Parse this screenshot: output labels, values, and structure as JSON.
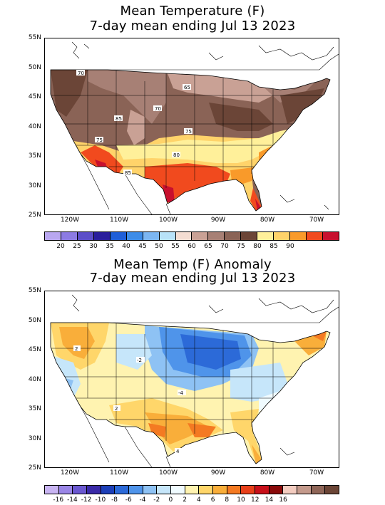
{
  "map1": {
    "title_line1": "Mean Temperature (F)",
    "title_line2": "7-day mean ending Jul 13 2023",
    "lat_labels": [
      "55N",
      "50N",
      "45N",
      "40N",
      "35N",
      "30N",
      "25N"
    ],
    "lon_labels": [
      "120W",
      "110W",
      "100W",
      "90W",
      "80W",
      "70W"
    ],
    "contour_labels": [
      "70",
      "65",
      "70",
      "85",
      "75",
      "75",
      "80",
      "85"
    ],
    "legend": {
      "colors": [
        "#b9a7f0",
        "#8c7be3",
        "#5c4ec8",
        "#2a1e9c",
        "#1f5fd8",
        "#3d8ce8",
        "#7cb6f2",
        "#b8e2f8",
        "#f4ddd2",
        "#c9a195",
        "#a78075",
        "#8a6356",
        "#6b4537",
        "#fff09a",
        "#ffd36a",
        "#f99a2a",
        "#f14a1e",
        "#c8102e"
      ],
      "labels": [
        "20",
        "25",
        "30",
        "35",
        "40",
        "45",
        "50",
        "55",
        "60",
        "65",
        "70",
        "75",
        "80",
        "85",
        "90"
      ]
    }
  },
  "map2": {
    "title_line1": "Mean Temp (F) Anomaly",
    "title_line2": "7-day mean ending Jul 13 2023",
    "lat_labels": [
      "55N",
      "50N",
      "45N",
      "40N",
      "35N",
      "30N",
      "25N"
    ],
    "lon_labels": [
      "120W",
      "110W",
      "100W",
      "90W",
      "80W",
      "70W"
    ],
    "contour_labels": [
      "2",
      "-2",
      "-4",
      "2",
      "4"
    ],
    "legend": {
      "colors": [
        "#c8b4f2",
        "#9a86e6",
        "#6a58d0",
        "#3a2aa8",
        "#1d3fb8",
        "#2c6ad8",
        "#4f94ea",
        "#8ec2f4",
        "#c6e6fa",
        "#f0fbff",
        "#fff3b0",
        "#ffd66a",
        "#f9ae3a",
        "#f47a22",
        "#e8401a",
        "#c8101a",
        "#8a0a0a",
        "#f3ccc0",
        "#c49a8c",
        "#8f6658",
        "#6b4536"
      ],
      "labels": [
        "-16",
        "-14",
        "-12",
        "-10",
        "-8",
        "-6",
        "-4",
        "-2",
        "0",
        "2",
        "4",
        "6",
        "8",
        "10",
        "12",
        "14",
        "16"
      ]
    }
  }
}
